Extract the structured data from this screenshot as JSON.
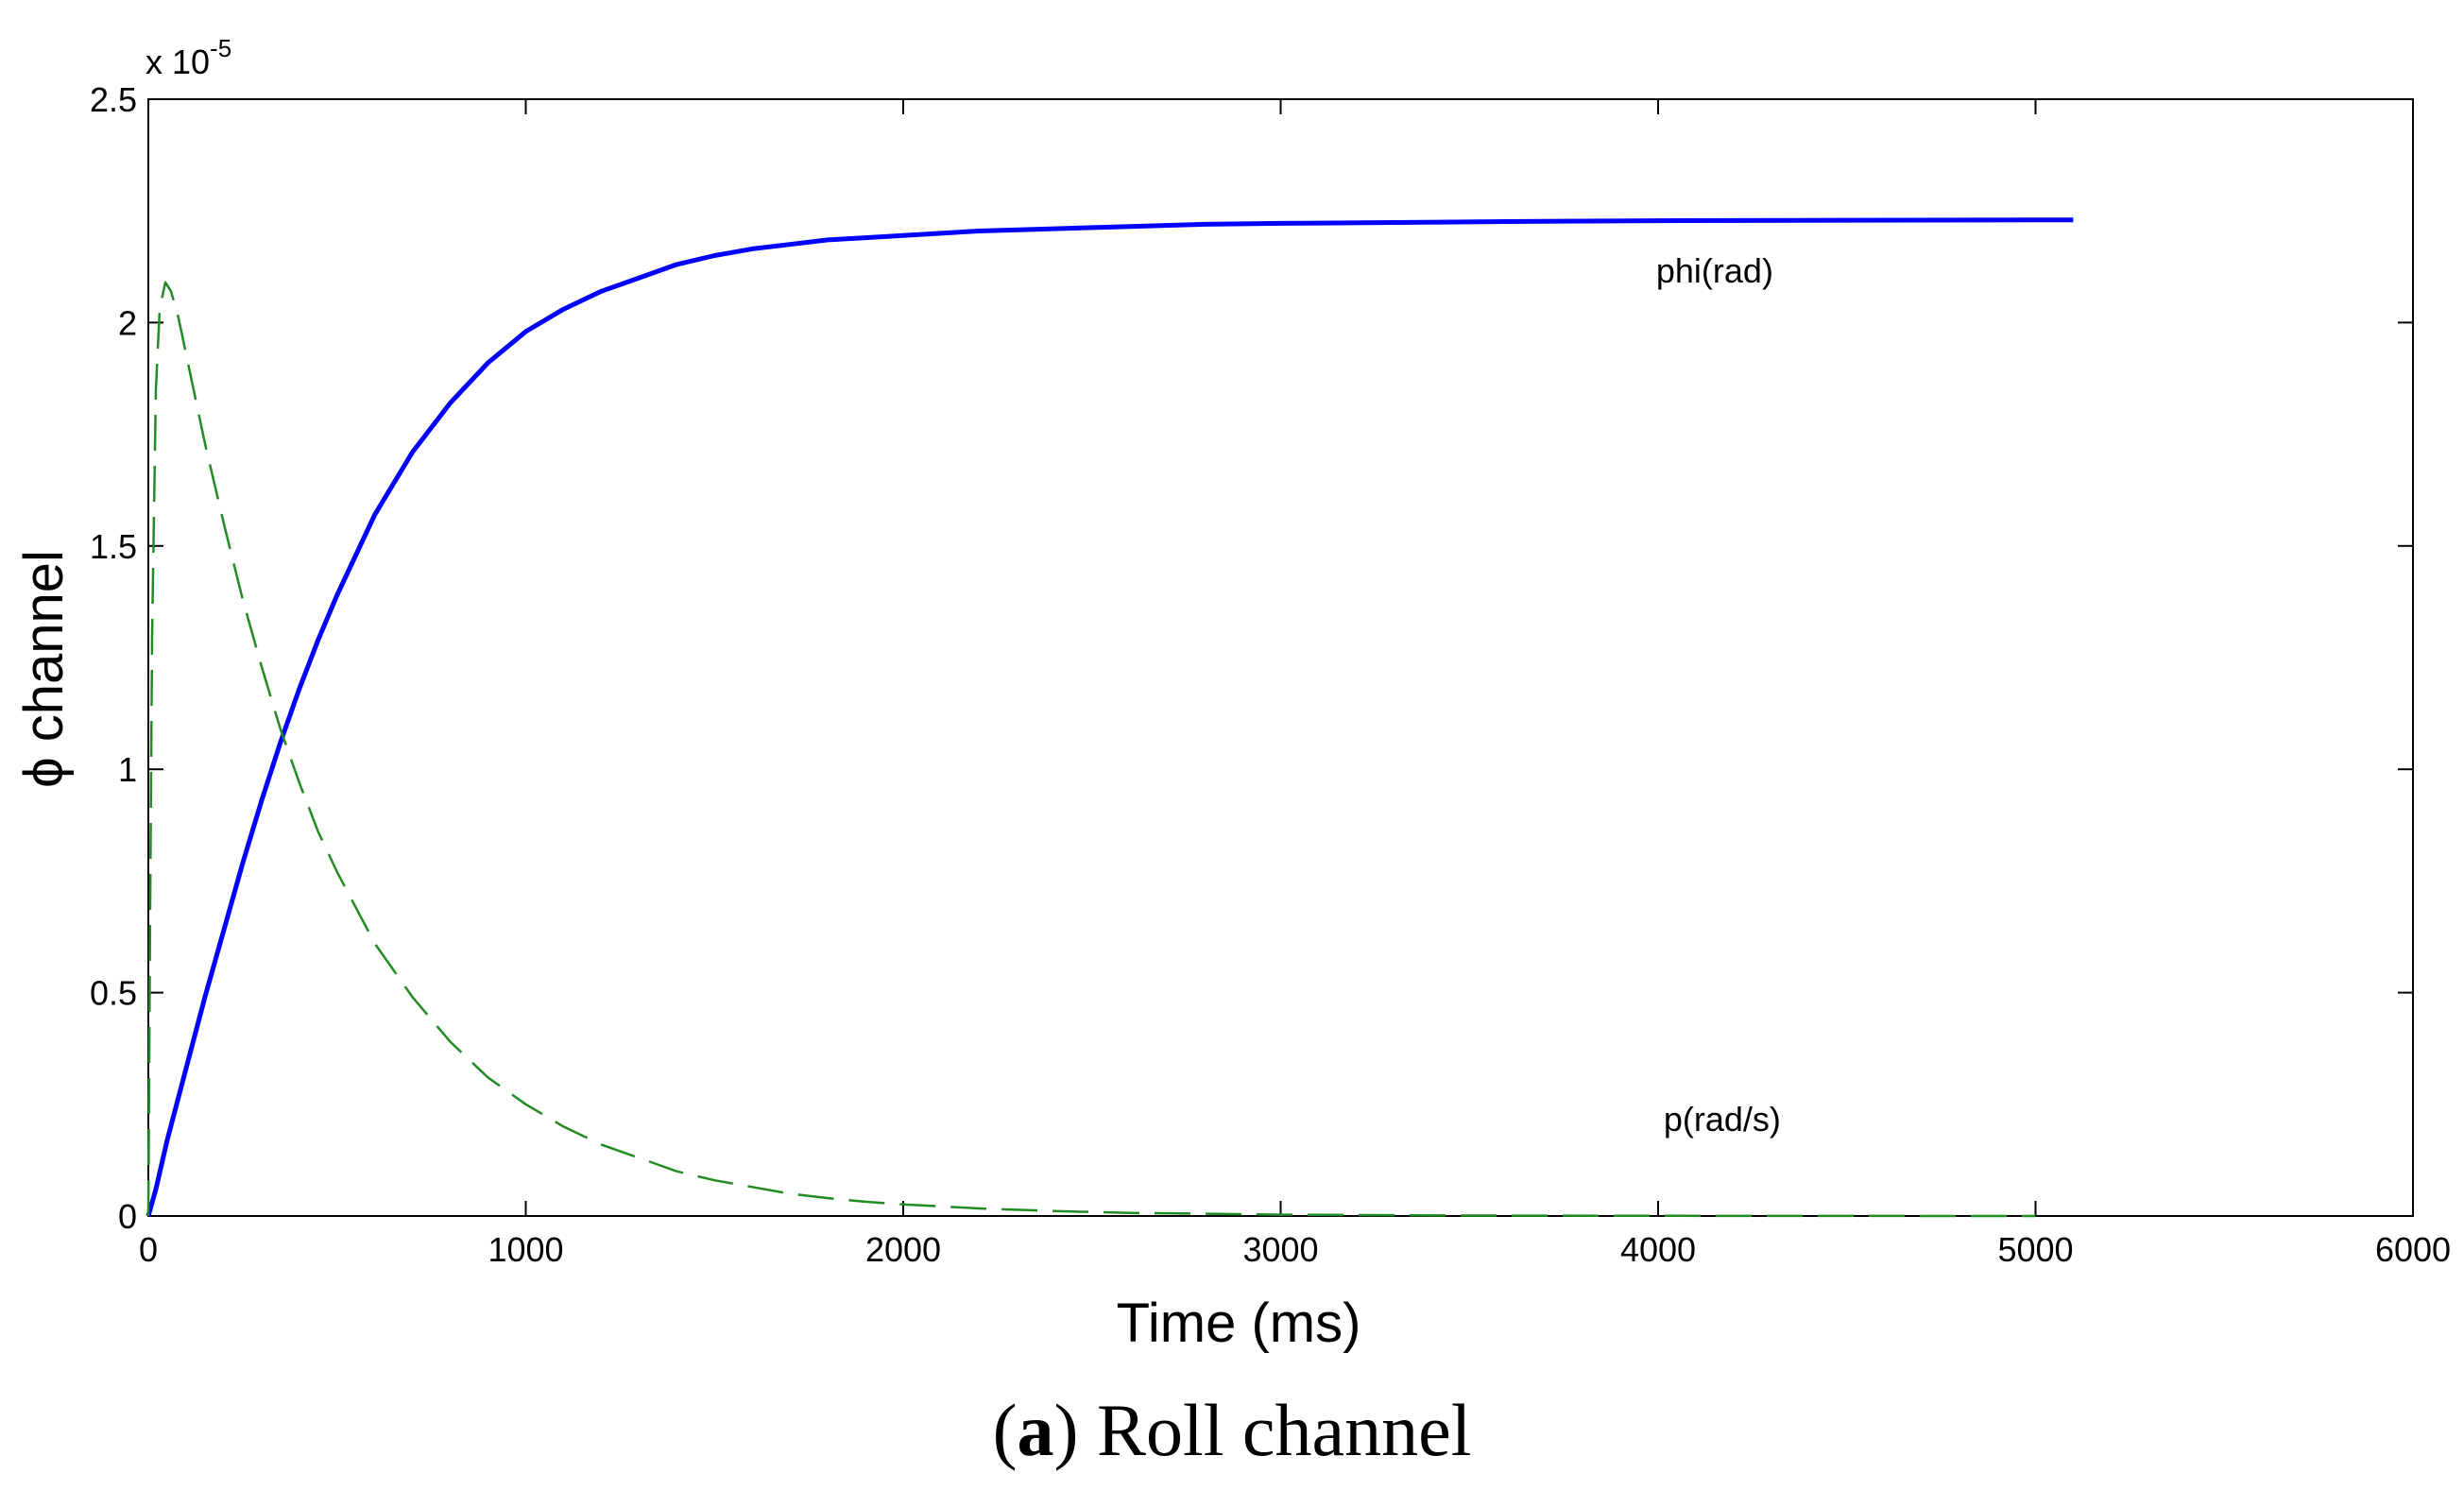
{
  "chart_data": {
    "type": "line",
    "caption": {
      "open": "(",
      "bold": "a",
      "rest": ") Roll channel"
    },
    "xlabel": "Time (ms)",
    "ylabel": "ϕ channel",
    "y_multiplier": {
      "base": "x 10",
      "exponent": "-5"
    },
    "xlim": [
      0,
      6000
    ],
    "ylim": [
      0,
      2.5
    ],
    "x_ticks": [
      0,
      1000,
      2000,
      3000,
      4000,
      5000,
      6000
    ],
    "y_ticks": [
      {
        "value": 0,
        "label": "0"
      },
      {
        "value": 0.5,
        "label": "0.5"
      },
      {
        "value": 1,
        "label": "1"
      },
      {
        "value": 1.5,
        "label": "1.5"
      },
      {
        "value": 2,
        "label": "2"
      },
      {
        "value": 2.5,
        "label": "2.5"
      }
    ],
    "grid": false,
    "series": [
      {
        "name": "phi(rad)",
        "color": "#0000ff",
        "style": "solid",
        "label_at": [
          4150,
          2.09
        ],
        "x": [
          0,
          20,
          50,
          100,
          150,
          200,
          250,
          300,
          350,
          400,
          450,
          500,
          600,
          700,
          800,
          900,
          1000,
          1100,
          1200,
          1300,
          1400,
          1500,
          1600,
          1700,
          1800,
          1900,
          2000,
          2200,
          2400,
          2600,
          2800,
          3000,
          3300,
          3600,
          4000,
          4500,
          5100
        ],
        "y": [
          0,
          0.06,
          0.17,
          0.33,
          0.49,
          0.64,
          0.79,
          0.93,
          1.06,
          1.18,
          1.29,
          1.39,
          1.57,
          1.71,
          1.82,
          1.91,
          1.98,
          2.03,
          2.07,
          2.1,
          2.13,
          2.15,
          2.165,
          2.175,
          2.185,
          2.19,
          2.195,
          2.205,
          2.21,
          2.215,
          2.22,
          2.222,
          2.224,
          2.226,
          2.228,
          2.229,
          2.23
        ]
      },
      {
        "name": "p(rad/s)",
        "color": "#228b22",
        "style": "dashed",
        "label_at": [
          4170,
          0.19
        ],
        "x": [
          0,
          5,
          10,
          20,
          30,
          45,
          60,
          80,
          100,
          150,
          200,
          250,
          300,
          350,
          400,
          450,
          500,
          600,
          700,
          800,
          900,
          1000,
          1100,
          1200,
          1300,
          1400,
          1500,
          1600,
          1700,
          1800,
          1900,
          2000,
          2200,
          2400,
          2600,
          2800,
          3000,
          3500,
          4000,
          4500,
          5000
        ],
        "y": [
          0,
          0.7,
          1.3,
          1.85,
          2.03,
          2.09,
          2.07,
          2.01,
          1.93,
          1.73,
          1.55,
          1.38,
          1.23,
          1.09,
          0.97,
          0.86,
          0.77,
          0.61,
          0.49,
          0.39,
          0.31,
          0.25,
          0.2,
          0.16,
          0.13,
          0.1,
          0.08,
          0.065,
          0.05,
          0.04,
          0.032,
          0.026,
          0.017,
          0.011,
          0.007,
          0.005,
          0.003,
          0.001,
          0.0005,
          0.0002,
          0.0001
        ]
      }
    ]
  }
}
